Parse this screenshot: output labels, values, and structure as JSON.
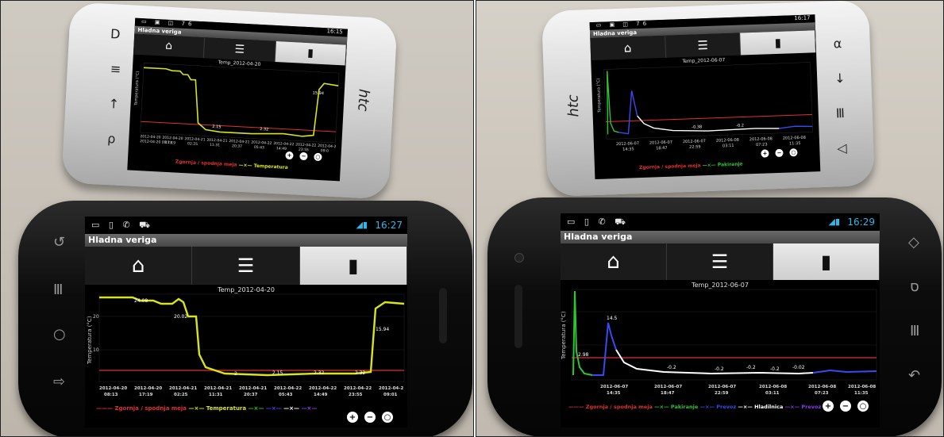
{
  "app": {
    "title": "Hladna veriga",
    "tabs": [
      {
        "icon": "home-icon"
      },
      {
        "icon": "list-icon"
      },
      {
        "icon": "bar-chart-icon"
      }
    ],
    "zoom_buttons": [
      "+",
      "−",
      "○"
    ]
  },
  "hw_keys": {
    "left_htc": [
      "D",
      "≡",
      "↑",
      "ρ"
    ],
    "left_nexus": [
      "↺",
      "Ⅲ",
      "○",
      "⇨"
    ],
    "right_htc": [
      "α",
      "↓",
      "Ⅲ",
      "◁"
    ],
    "right_nexus": [
      "◇",
      "ס",
      "Ⅲ",
      "↶"
    ]
  },
  "left": {
    "htc": {
      "status_icons": "▭ ▣ ◫ 76",
      "time": "16:15",
      "brand": "htc",
      "chart_title": "Temp_2012-04-20",
      "ylabel": "Temperatura (°C)",
      "y_ticks": [
        "20",
        "10"
      ],
      "data_labels": [
        "2.15",
        "2.32",
        "15.94"
      ],
      "x_ticks": [
        "2012-04-20 08:13",
        "17:19",
        "02:25",
        "11:31",
        "20:37",
        "05:43",
        "14:49",
        "23:55",
        "09:0"
      ],
      "x_ticks_line1": [
        "2012-04-20",
        "2012-04-20",
        "2012-04-21",
        "2012-04-21",
        "2012-04-21",
        "2012-04-22",
        "2012-04-22",
        "2012-04-22",
        "2012-04-2"
      ],
      "legend": [
        {
          "label": "Zgornja / spodnja meja",
          "color": "#e23030"
        },
        {
          "label": "Temperatura",
          "color": "#d9e31a"
        }
      ]
    },
    "nexus": {
      "status_icons": "▭ ▯ ✆ ⛟",
      "time": "16:27",
      "chart_title": "Temp_2012-04-20",
      "ylabel": "Temperatura (°C)",
      "y_ticks": [
        "20",
        "10"
      ],
      "data_labels": [
        "24.08",
        "20.02",
        "2",
        "2.15",
        "2.32",
        "2.32",
        "15.94"
      ],
      "x_ticks_line1": [
        "2012-04-20",
        "2012-04-20",
        "2012-04-21",
        "2012-04-21",
        "2012-04-21",
        "2012-04-22",
        "2012-04-22",
        "2012-04-22",
        "2012-04-2"
      ],
      "x_ticks_line2": [
        "08:13",
        "17:19",
        "02:25",
        "11:31",
        "20:37",
        "05:43",
        "14:49",
        "23:55",
        "09:01"
      ],
      "legend": [
        {
          "label": "Zgornja / spodnja meja",
          "color": "#e23030"
        },
        {
          "label": "Temperatura",
          "color": "#d9e31a"
        }
      ]
    }
  },
  "right": {
    "htc": {
      "status_icons": "▭ ▣ ◫ 76",
      "time": "16:17",
      "brand": "htc",
      "chart_title": "Temp_2012-06-07",
      "ylabel": "Temperatura (°C)",
      "data_labels": [
        "-0.38",
        "-0.2"
      ],
      "x_ticks_line1": [
        "2012-06-07",
        "2012-06-07",
        "2012-06-07",
        "2012-06-08",
        "2012-06-08",
        "2012-06-08"
      ],
      "x_ticks_line2": [
        "14:35",
        "18:47",
        "22:59",
        "03:11",
        "07:23",
        "11:35"
      ],
      "legend": [
        {
          "label": "Zgornja / spodnja meja",
          "color": "#e23030"
        },
        {
          "label": "Pakiranje",
          "color": "#2ec43a"
        }
      ]
    },
    "nexus": {
      "status_icons": "▭ ▯ ✆ ⛟",
      "time": "16:29",
      "chart_title": "Temp_2012-06-07",
      "ylabel": "Temperatura (°C)",
      "data_labels": [
        "2.98",
        "14.5",
        "-0.2",
        "-0.2",
        "-0.2",
        "-0.2",
        "-0.02"
      ],
      "x_ticks_line1": [
        "2012-06-07",
        "2012-06-07",
        "2012-06-07",
        "2012-06-08",
        "2012-06-08",
        "2012-06-08"
      ],
      "x_ticks_line2": [
        "14:35",
        "18:47",
        "22:59",
        "03:11",
        "07:23",
        "11:35"
      ],
      "legend": [
        {
          "label": "Zgornja / spodnja meja",
          "color": "#e23030"
        },
        {
          "label": "Pakiranje",
          "color": "#2ec43a"
        },
        {
          "label": "Prevoz",
          "color": "#3a4af0"
        },
        {
          "label": "Hladilnica",
          "color": "#ffffff"
        },
        {
          "label": "Prevoz",
          "color": "#8a3af0"
        }
      ]
    }
  },
  "colors": {
    "limit_line": "#e23030",
    "temperature": "#d9e31a",
    "pakiranje": "#2ec43a",
    "prevoz": "#3a4af0",
    "hladilnica": "#ffffff"
  }
}
